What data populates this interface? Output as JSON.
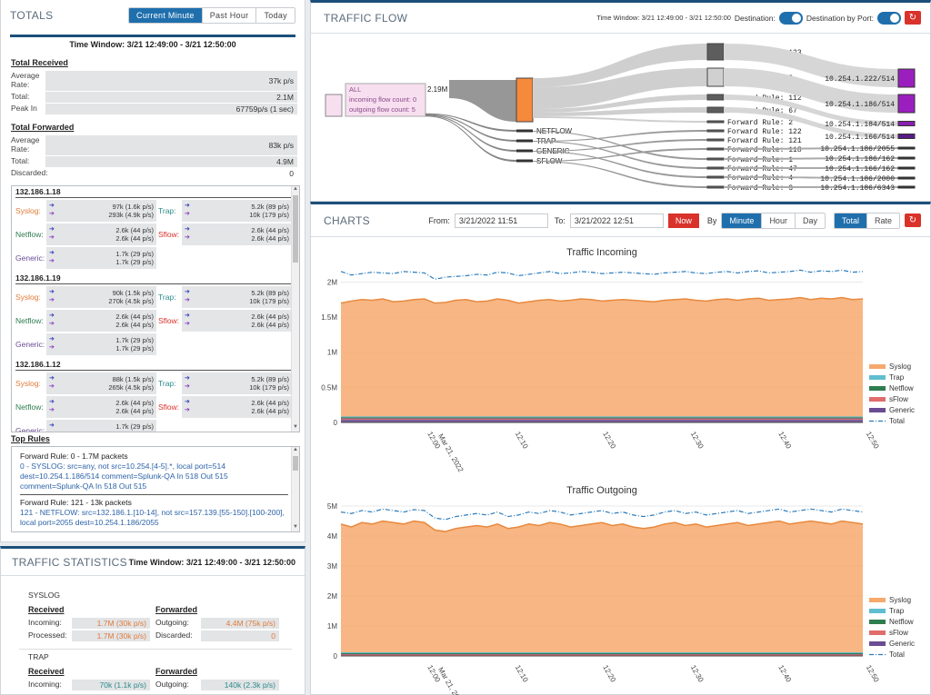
{
  "totals": {
    "title": "TOTALS",
    "ranges": [
      "Current Minute",
      "Past Hour",
      "Today"
    ],
    "time_window": "Time Window: 3/21 12:49:00 - 3/21 12:50:00",
    "received": {
      "heading": "Total Received",
      "avg_label": "Average Rate:",
      "avg_value": "37k p/s",
      "total_label": "Total:",
      "total_value": "2.1M",
      "peak_label": "Peak In",
      "peak_value": "67759p/s (1 sec)"
    },
    "forwarded": {
      "heading": "Total Forwarded",
      "avg_label": "Average Rate:",
      "avg_value": "83k p/s",
      "total_label": "Total:",
      "total_value": "4.9M",
      "discarded_label": "Discarded:",
      "discarded_value": "0"
    },
    "labels": {
      "syslog": "Syslog:",
      "trap": "Trap:",
      "netflow": "Netflow:",
      "sflow": "Sflow:",
      "generic": "Generic:"
    },
    "hosts": [
      {
        "ip": "132.186.1.18",
        "syslog": [
          "97k (1.6k p/s)",
          "293k (4.9k p/s)"
        ],
        "trap": [
          "5.2k (89 p/s)",
          "10k (179 p/s)"
        ],
        "netflow": [
          "2.6k (44 p/s)",
          "2.6k (44 p/s)"
        ],
        "sflow": [
          "2.6k (44 p/s)",
          "2.6k (44 p/s)"
        ],
        "generic": [
          "1.7k (29 p/s)",
          "1.7k (29 p/s)"
        ]
      },
      {
        "ip": "132.186.1.19",
        "syslog": [
          "90k (1.5k p/s)",
          "270k (4.5k p/s)"
        ],
        "trap": [
          "5.2k (89 p/s)",
          "10k (179 p/s)"
        ],
        "netflow": [
          "2.6k (44 p/s)",
          "2.6k (44 p/s)"
        ],
        "sflow": [
          "2.6k (44 p/s)",
          "2.6k (44 p/s)"
        ],
        "generic": [
          "1.7k (29 p/s)",
          "1.7k (29 p/s)"
        ]
      },
      {
        "ip": "132.186.1.12",
        "syslog": [
          "88k (1.5k p/s)",
          "265k (4.5k p/s)"
        ],
        "trap": [
          "5.2k (89 p/s)",
          "10k (179 p/s)"
        ],
        "netflow": [
          "2.6k (44 p/s)",
          "2.6k (44 p/s)"
        ],
        "sflow": [
          "2.6k (44 p/s)",
          "2.6k (44 p/s)"
        ],
        "generic": [
          "1.7k (29 p/s)",
          "1.7k (29 p/s)"
        ]
      }
    ],
    "top_rules": {
      "heading": "Top Rules",
      "rules": [
        {
          "title": "Forward Rule: 0 - 1.7M packets",
          "body": "0 - SYSLOG: src=any, not src=10.254.[4-5].*, local port=514 dest=10.254.1.186/514 comment=Splunk-QA In 518 Out 515 comment=Splunk-QA In 518 Out 515"
        },
        {
          "title": "Forward Rule: 121 - 13k packets",
          "body": "121 - NETFLOW: src=132.186.1.[10-14], not src=157.139.[55-150].[100-200], local port=2055 dest=10.254.1.186/2055"
        }
      ]
    }
  },
  "traffic_stats": {
    "title": "TRAFFIC STATISTICS",
    "time_window": "Time Window: 3/21 12:49:00 - 3/21 12:50:00",
    "groups": [
      {
        "name": "SYSLOG",
        "received": "Received",
        "forwarded": "Forwarded",
        "incoming_label": "Incoming:",
        "incoming": "1.7M (30k p/s)",
        "processed_label": "Processed:",
        "processed": "1.7M (30k p/s)",
        "outgoing_label": "Outgoing:",
        "outgoing": "4.4M (75k p/s)",
        "discarded_label": "Discarded:",
        "discarded": "0"
      },
      {
        "name": "TRAP",
        "received": "Received",
        "forwarded": "Forwarded",
        "incoming_label": "Incoming:",
        "incoming": "70k (1.1k p/s)",
        "outgoing_label": "Outgoing:",
        "outgoing": "140k (2.3k p/s)"
      }
    ]
  },
  "traffic_flow": {
    "title": "TRAFFIC FLOW",
    "time_window": "Time Window: 3/21 12:49:00 - 3/21 12:50:00",
    "dest_label": "Destination:",
    "dest_port_label": "Destination by Port:",
    "all_node": {
      "name": "ALL",
      "in": "incoming flow count: 0",
      "out": "outgoing flow count: 5"
    },
    "all_value": "2.19M",
    "protocols": [
      "SYSLOG",
      "NETFLOW",
      "TRAP",
      "GENERIC",
      "SFLOW"
    ],
    "rules": [
      "Forward Rule: 123",
      "Forward Rule: 0",
      "Forward Rule: 112",
      "Forward Rule: 67",
      "Forward Rule: 2",
      "Forward Rule: 122",
      "Forward Rule: 121",
      "Forward Rule: 118",
      "Forward Rule: 1",
      "Forward Rule: 47",
      "Forward Rule: 4",
      "Forward Rule: 3"
    ],
    "destinations": [
      "10.254.1.222/514",
      "10.254.1.186/514",
      "10.254.1.184/514",
      "10.254.1.166/514",
      "10.254.1.186/2055",
      "10.254.1.186/162",
      "10.254.1.166/162",
      "10.254.1.186/2000",
      "10.254.1.186/6343"
    ]
  },
  "charts": {
    "title": "CHARTS",
    "from_label": "From:",
    "from_value": "3/21/2022 11:51",
    "to_label": "To:",
    "to_value": "3/21/2022 12:51",
    "now_label": "Now",
    "by_label": "By",
    "granularity": [
      "Minute",
      "Hour",
      "Day"
    ],
    "mode": [
      "Total",
      "Rate"
    ],
    "legend": [
      "Syslog",
      "Trap",
      "Netflow",
      "sFlow",
      "Generic",
      "Total"
    ]
  },
  "chart_data": [
    {
      "type": "area",
      "title": "Traffic Incoming",
      "x_ticks": [
        "12:00\nMar 21, 2022",
        "12:10",
        "12:20",
        "12:30",
        "12:40",
        "12:50"
      ],
      "y_ticks": [
        "0",
        "0.5M",
        "1M",
        "1.5M",
        "2M"
      ],
      "ylim": [
        0,
        2200000
      ],
      "legend_placement": "right",
      "colors": {
        "syslog": "#f6a96d",
        "trap": "#5fbecf",
        "netflow": "#2e7d4f",
        "sflow": "#e06c6c",
        "generic": "#6a4c93",
        "total": "#2b7bba"
      },
      "series": [
        {
          "name": "Syslog",
          "values": [
            1700000,
            1730000,
            1750000,
            1740000,
            1760000,
            1720000,
            1730000,
            1750000,
            1760000,
            1700000,
            1710000,
            1740000,
            1750000,
            1720000,
            1730000,
            1760000,
            1740000,
            1700000,
            1720000,
            1740000,
            1750000,
            1730000,
            1740000,
            1760000,
            1750000,
            1730000,
            1740000,
            1750000,
            1740000,
            1730000,
            1720000,
            1740000,
            1750000,
            1760000,
            1740000,
            1730000,
            1750000,
            1760000,
            1740000,
            1760000,
            1770000,
            1740000,
            1750000,
            1760000,
            1780000,
            1750000,
            1770000,
            1760000,
            1780000,
            1750000,
            1760000
          ]
        },
        {
          "name": "Trap",
          "values": [
            70000
          ]
        },
        {
          "name": "Netflow",
          "values": [
            40000
          ]
        },
        {
          "name": "sFlow",
          "values": [
            40000
          ]
        },
        {
          "name": "Generic",
          "values": [
            25000
          ]
        },
        {
          "name": "Total",
          "values": [
            2150000,
            2100000,
            2120000,
            2140000,
            2130000,
            2120000,
            2150000,
            2140000,
            2130000,
            2040000,
            2070000,
            2080000,
            2090000,
            2110000,
            2100000,
            2140000,
            2130000,
            2090000,
            2110000,
            2130000,
            2150000,
            2120000,
            2130000,
            2150000,
            2140000,
            2120000,
            2130000,
            2140000,
            2130000,
            2120000,
            2110000,
            2130000,
            2140000,
            2150000,
            2130000,
            2120000,
            2140000,
            2150000,
            2130000,
            2150000,
            2160000,
            2130000,
            2140000,
            2150000,
            2170000,
            2140000,
            2160000,
            2150000,
            2170000,
            2140000,
            2150000
          ]
        }
      ]
    },
    {
      "type": "area",
      "title": "Traffic Outgoing",
      "x_ticks": [
        "12:00\nMar 21, 2022",
        "12:10",
        "12:20",
        "12:30",
        "12:40",
        "12:50"
      ],
      "y_ticks": [
        "0",
        "1M",
        "2M",
        "3M",
        "4M",
        "5M"
      ],
      "ylim": [
        0,
        5000000
      ],
      "legend_placement": "right",
      "colors": {
        "syslog": "#f6a96d",
        "trap": "#5fbecf",
        "netflow": "#2e7d4f",
        "sflow": "#e06c6c",
        "generic": "#6a4c93",
        "total": "#2b7bba"
      },
      "series": [
        {
          "name": "Syslog",
          "values": [
            4400000,
            4300000,
            4450000,
            4400000,
            4500000,
            4450000,
            4400000,
            4500000,
            4450000,
            4200000,
            4150000,
            4250000,
            4300000,
            4350000,
            4300000,
            4400000,
            4250000,
            4300000,
            4400000,
            4350000,
            4450000,
            4400000,
            4300000,
            4350000,
            4400000,
            4450000,
            4350000,
            4400000,
            4300000,
            4250000,
            4300000,
            4400000,
            4450000,
            4350000,
            4400000,
            4300000,
            4350000,
            4400000,
            4450000,
            4350000,
            4400000,
            4450000,
            4500000,
            4400000,
            4450000,
            4500000,
            4450000,
            4400000,
            4500000,
            4450000,
            4400000
          ]
        },
        {
          "name": "Trap",
          "values": [
            140000
          ]
        },
        {
          "name": "Netflow",
          "values": [
            80000
          ]
        },
        {
          "name": "sFlow",
          "values": [
            80000
          ]
        },
        {
          "name": "Generic",
          "values": [
            50000
          ]
        },
        {
          "name": "Total",
          "values": [
            4800000,
            4750000,
            4850000,
            4800000,
            4900000,
            4850000,
            4800000,
            4880000,
            4850000,
            4600000,
            4550000,
            4650000,
            4700000,
            4750000,
            4700000,
            4800000,
            4650000,
            4700000,
            4800000,
            4750000,
            4850000,
            4800000,
            4700000,
            4750000,
            4800000,
            4850000,
            4750000,
            4800000,
            4700000,
            4650000,
            4700000,
            4800000,
            4850000,
            4750000,
            4800000,
            4700000,
            4750000,
            4800000,
            4850000,
            4750000,
            4800000,
            4850000,
            4900000,
            4800000,
            4850000,
            4900000,
            4850000,
            4800000,
            4900000,
            4850000,
            4800000
          ]
        }
      ]
    }
  ]
}
